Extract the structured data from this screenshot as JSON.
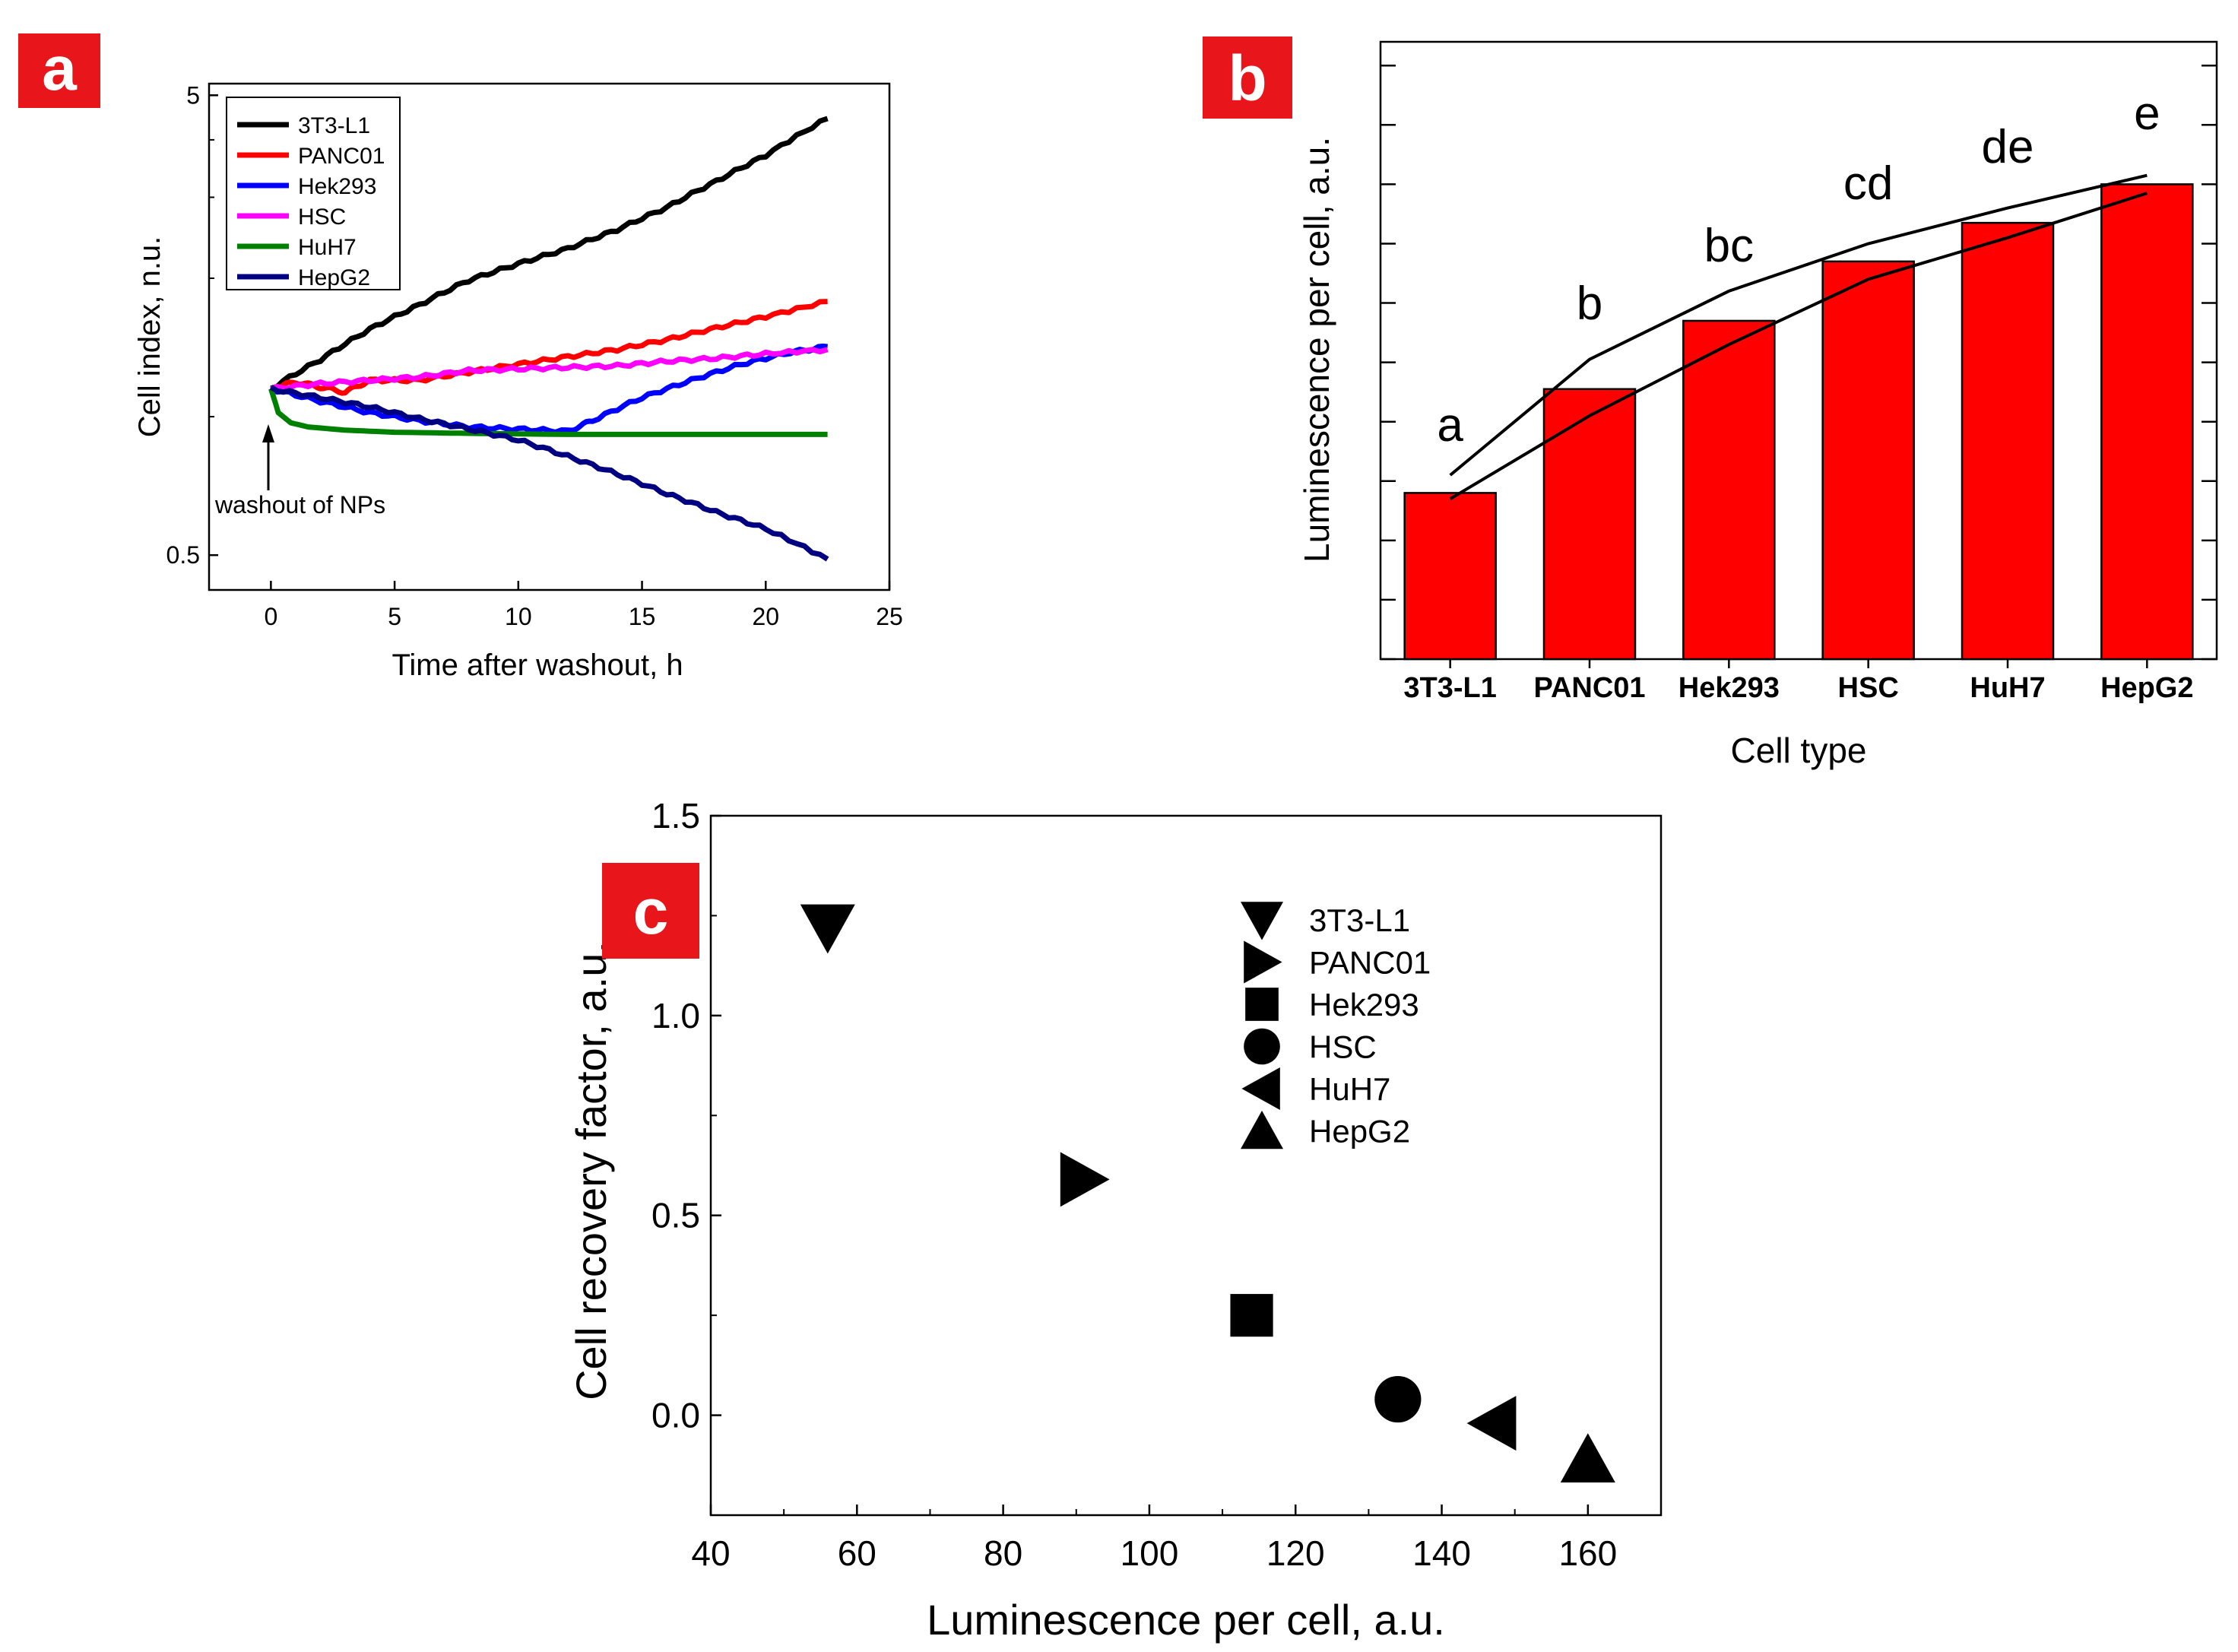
{
  "chart_data": [
    {
      "panel": "a",
      "type": "line",
      "xlabel": "Time after washout, h",
      "ylabel": "Cell index, n.u.",
      "xlim": [
        -2.5,
        25
      ],
      "xticks": [
        0,
        5,
        10,
        15,
        20,
        25
      ],
      "ylim": [
        0.42,
        5.3
      ],
      "yscale": "log",
      "yticks": [
        0.5,
        5
      ],
      "annotation": "washout of NPs",
      "annotation_x": 0,
      "legend_position": "top-left",
      "series": [
        {
          "name": "3T3-L1",
          "color": "#000000",
          "x": [
            0,
            2,
            4,
            6,
            8,
            10,
            12,
            14,
            16,
            18,
            20,
            22.5
          ],
          "y": [
            1.15,
            1.33,
            1.55,
            1.75,
            1.98,
            2.15,
            2.32,
            2.55,
            2.85,
            3.25,
            3.7,
            4.45
          ]
        },
        {
          "name": "PANC01",
          "color": "#ff0000",
          "x": [
            0,
            1,
            2,
            3,
            4,
            6,
            8,
            10,
            12,
            14,
            16,
            18,
            20,
            22.5
          ],
          "y": [
            1.15,
            1.19,
            1.16,
            1.13,
            1.2,
            1.2,
            1.25,
            1.3,
            1.35,
            1.4,
            1.47,
            1.56,
            1.65,
            1.78
          ]
        },
        {
          "name": "Hek293",
          "color": "#0000ff",
          "x": [
            0,
            2,
            4,
            6,
            8,
            10,
            12,
            13,
            15,
            17,
            19,
            21,
            22.5
          ],
          "y": [
            1.15,
            1.08,
            1.02,
            0.98,
            0.95,
            0.94,
            0.93,
            0.98,
            1.1,
            1.2,
            1.3,
            1.38,
            1.42
          ]
        },
        {
          "name": "HSC",
          "color": "#ff00ff",
          "x": [
            0,
            2,
            4,
            6,
            8,
            10,
            12,
            14,
            16,
            18,
            20,
            22.5
          ],
          "y": [
            1.15,
            1.18,
            1.2,
            1.22,
            1.26,
            1.27,
            1.28,
            1.29,
            1.32,
            1.34,
            1.37,
            1.4
          ]
        },
        {
          "name": "HuH7",
          "color": "#008000",
          "x": [
            0,
            0.3,
            0.8,
            1.5,
            3,
            5,
            8,
            12,
            16,
            20,
            22.5
          ],
          "y": [
            1.15,
            1.02,
            0.97,
            0.95,
            0.935,
            0.925,
            0.92,
            0.915,
            0.915,
            0.915,
            0.915
          ]
        },
        {
          "name": "HepG2",
          "color": "#000080",
          "x": [
            0,
            2,
            4,
            6,
            8,
            10,
            12,
            14,
            16,
            18,
            20,
            22.5
          ],
          "y": [
            1.15,
            1.1,
            1.05,
            0.99,
            0.94,
            0.89,
            0.82,
            0.75,
            0.68,
            0.62,
            0.57,
            0.49
          ]
        }
      ]
    },
    {
      "panel": "b",
      "type": "bar",
      "xlabel": "Cell type",
      "ylabel": "Luminescence per cell, a.u.",
      "categories": [
        "3T3-L1",
        "PANC01",
        "Hek293",
        "HSC",
        "HuH7",
        "HepG2"
      ],
      "values": [
        56,
        91,
        114,
        134,
        147,
        160
      ],
      "ylim": [
        0,
        208
      ],
      "bar_color": "#ff0000",
      "significance_letters": [
        "a",
        "b",
        "bc",
        "cd",
        "de",
        "e"
      ],
      "upper_line": [
        62,
        101,
        124,
        140,
        152,
        163
      ],
      "lower_line": [
        54,
        82,
        106,
        128,
        142,
        157
      ]
    },
    {
      "panel": "c",
      "type": "scatter",
      "xlabel": "Luminescence per cell, a.u.",
      "ylabel": "Cell recovery factor, a.u.",
      "xlim": [
        40,
        170
      ],
      "xticks": [
        40,
        60,
        80,
        100,
        120,
        140,
        160
      ],
      "ylim": [
        -0.25,
        1.5
      ],
      "yticks": [
        0.0,
        0.5,
        1.0,
        1.5
      ],
      "ytick_labels": [
        "0.0",
        "0.5",
        "1.0",
        "1.5"
      ],
      "legend_position": "top-right",
      "points": [
        {
          "name": "3T3-L1",
          "marker": "triangle-down",
          "x": 56,
          "y": 1.22
        },
        {
          "name": "PANC01",
          "marker": "triangle-right",
          "x": 91,
          "y": 0.59
        },
        {
          "name": "Hek293",
          "marker": "square",
          "x": 114,
          "y": 0.25
        },
        {
          "name": "HSC",
          "marker": "circle",
          "x": 134,
          "y": 0.04
        },
        {
          "name": "HuH7",
          "marker": "triangle-left",
          "x": 147,
          "y": -0.02
        },
        {
          "name": "HepG2",
          "marker": "triangle-up",
          "x": 160,
          "y": -0.11
        }
      ]
    }
  ],
  "panel_labels": {
    "a": "a",
    "b": "b",
    "c": "c"
  },
  "colors": {
    "badge": "#e8151b",
    "badge_text": "#ffffff",
    "axis": "#000000",
    "bar": "#ff0000"
  }
}
